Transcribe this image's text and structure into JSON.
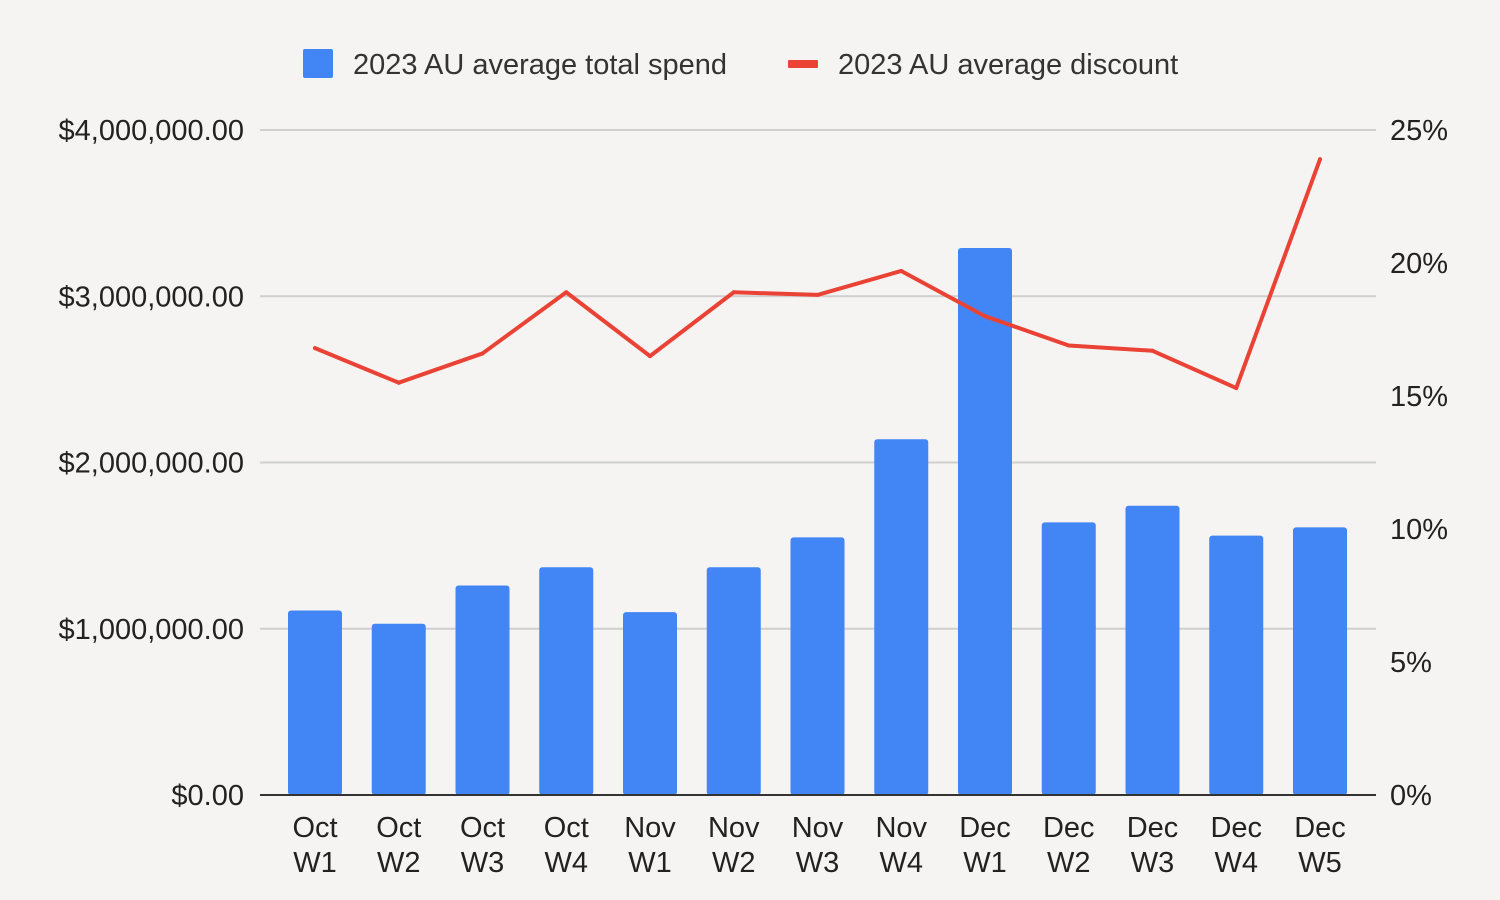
{
  "chart_data": {
    "type": "bar",
    "categories": [
      [
        "Oct",
        "W1"
      ],
      [
        "Oct",
        "W2"
      ],
      [
        "Oct",
        "W3"
      ],
      [
        "Oct",
        "W4"
      ],
      [
        "Nov",
        "W1"
      ],
      [
        "Nov",
        "W2"
      ],
      [
        "Nov",
        "W3"
      ],
      [
        "Nov",
        "W4"
      ],
      [
        "Dec",
        "W1"
      ],
      [
        "Dec",
        "W2"
      ],
      [
        "Dec",
        "W3"
      ],
      [
        "Dec",
        "W4"
      ],
      [
        "Dec",
        "W5"
      ]
    ],
    "series": [
      {
        "name": "2023 AU average total spend",
        "type": "bar",
        "axis": "left",
        "color": "#4285f4",
        "values": [
          1110000,
          1030000,
          1260000,
          1370000,
          1100000,
          1370000,
          1550000,
          2140000,
          3290000,
          1640000,
          1740000,
          1560000,
          1610000
        ]
      },
      {
        "name": "2023 AU average discount",
        "type": "line",
        "axis": "right",
        "color": "#ea4335",
        "values": [
          16.8,
          15.5,
          16.6,
          18.9,
          16.5,
          18.9,
          18.8,
          19.7,
          18.0,
          16.9,
          16.7,
          15.3,
          23.9
        ]
      }
    ],
    "left_axis": {
      "min": 0,
      "max": 4000000,
      "ticks": [
        "$0.00",
        "$1,000,000.00",
        "$2,000,000.00",
        "$3,000,000.00",
        "$4,000,000.00"
      ]
    },
    "right_axis": {
      "min": 0,
      "max": 25,
      "ticks": [
        "0%",
        "5%",
        "10%",
        "15%",
        "20%",
        "25%"
      ]
    },
    "grid": true,
    "legend_position": "top"
  }
}
